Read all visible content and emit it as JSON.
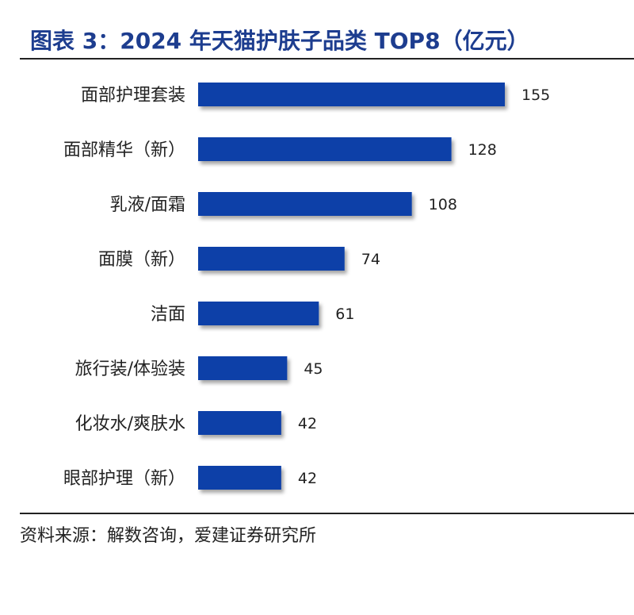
{
  "title": "图表 3：2024 年天猫护肤子品类 TOP8（亿元）",
  "source": "资料来源：解数咨询，爱建证券研究所",
  "chart_data": {
    "type": "bar",
    "orientation": "horizontal",
    "title": "图表 3：2024 年天猫护肤子品类 TOP8（亿元）",
    "categories": [
      "面部护理套装",
      "面部精华（新）",
      "乳液/面霜",
      "面膜（新）",
      "洁面",
      "旅行装/体验装",
      "化妆水/爽肤水",
      "眼部护理（新）"
    ],
    "values": [
      155,
      128,
      108,
      74,
      61,
      45,
      42,
      42
    ],
    "xlim": [
      0,
      160
    ],
    "grid": false,
    "axes_visible": false,
    "data_labels": true,
    "bar_color": "#0a3fa8",
    "title_color": "#1d3d8f"
  }
}
